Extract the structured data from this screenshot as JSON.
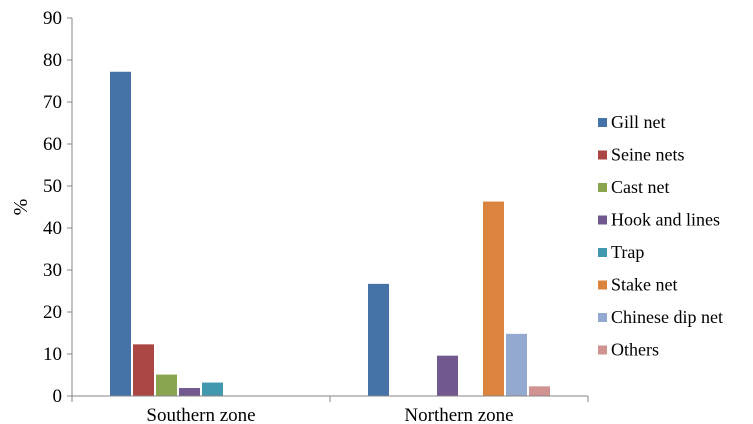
{
  "chart_data": {
    "type": "bar",
    "categories": [
      "Southern zone",
      "Northern zone"
    ],
    "ylabel": "%",
    "xlabel": "",
    "ylim": [
      0,
      90
    ],
    "yticks": [
      0,
      10,
      20,
      30,
      40,
      50,
      60,
      70,
      80,
      90
    ],
    "grid": false,
    "legend_position": "right",
    "series": [
      {
        "name": "Gill net",
        "color": "#4572A7",
        "values": [
          77.2,
          26.7
        ]
      },
      {
        "name": "Seine nets",
        "color": "#AA4643",
        "values": [
          12.3,
          0
        ]
      },
      {
        "name": "Cast net",
        "color": "#89A54E",
        "values": [
          5.1,
          0
        ]
      },
      {
        "name": "Hook and lines",
        "color": "#71588F",
        "values": [
          1.9,
          9.6
        ]
      },
      {
        "name": "Trap",
        "color": "#4198AF",
        "values": [
          3.2,
          0
        ]
      },
      {
        "name": "Stake net",
        "color": "#DB843D",
        "values": [
          0,
          46.3
        ]
      },
      {
        "name": "Chinese dip net",
        "color": "#93A9CF",
        "values": [
          0,
          14.8
        ]
      },
      {
        "name": "Others",
        "color": "#D19392",
        "values": [
          0,
          2.3
        ]
      }
    ]
  }
}
